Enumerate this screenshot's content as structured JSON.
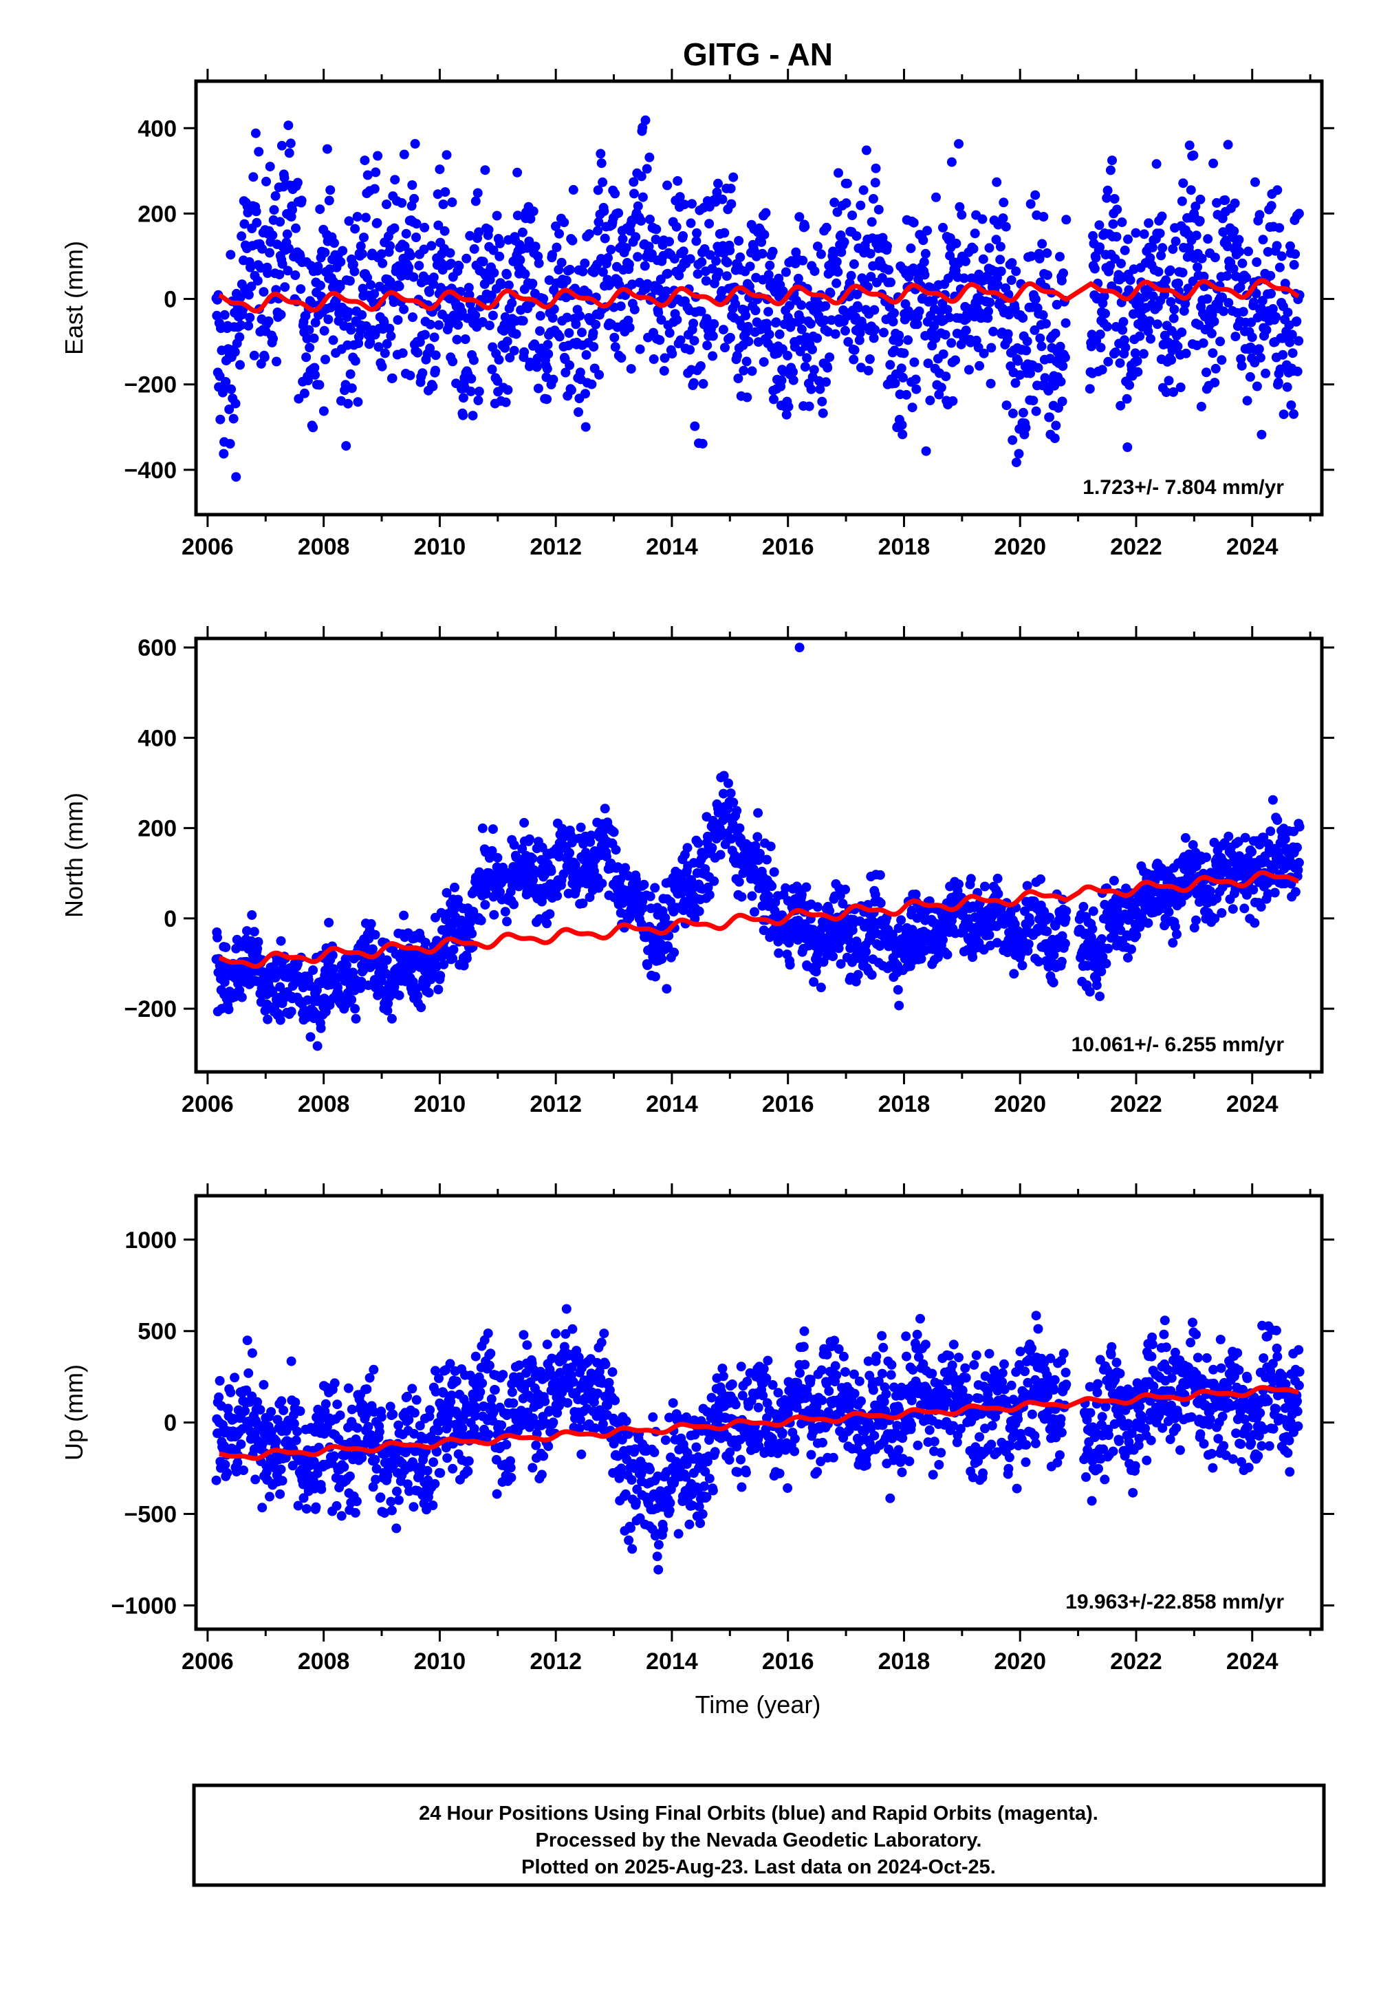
{
  "title": "GITG - AN",
  "colors": {
    "final_orbits": "#0000ff",
    "model_fit": "#ff0000",
    "frame": "#000000"
  },
  "footer": {
    "line1": "24 Hour Positions Using Final Orbits (blue) and Rapid Orbits (magenta).",
    "line2": "Processed by the Nevada Geodetic Laboratory.",
    "line3": "Plotted on 2025-Aug-23. Last data on 2024-Oct-25."
  },
  "x_axis": {
    "label": "Time (year)",
    "range": [
      2005.8,
      2025.2
    ],
    "ticks": [
      2006,
      2008,
      2010,
      2012,
      2014,
      2016,
      2018,
      2020,
      2022,
      2024
    ],
    "tick_labels": [
      "2006",
      "2008",
      "2010",
      "2012",
      "2014",
      "2016",
      "2018",
      "2020",
      "2022",
      "2024"
    ]
  },
  "chart_data": [
    {
      "type": "scatter",
      "component": "east",
      "ylabel": "East (mm)",
      "ylim": [
        -505,
        510
      ],
      "yticks": [
        -400,
        -200,
        0,
        200,
        400
      ],
      "ytick_labels": [
        "−400",
        "−200",
        "0",
        "200",
        "400"
      ],
      "rate_label": "1.723+/- 7.804 mm/yr",
      "velocity_mm_per_yr": 1.723,
      "series": [
        {
          "name": "Final Orbits (blue)",
          "kind": "scatter",
          "summary": {
            "center": [
              [
                2006.2,
                -120
              ],
              [
                2007.0,
                80
              ],
              [
                2008.0,
                40
              ],
              [
                2009.0,
                0
              ],
              [
                2010.0,
                60
              ],
              [
                2011.0,
                -80
              ],
              [
                2012.0,
                -20
              ],
              [
                2013.0,
                40
              ],
              [
                2014.0,
                90
              ],
              [
                2015.0,
                10
              ],
              [
                2016.0,
                -40
              ],
              [
                2017.0,
                20
              ],
              [
                2018.0,
                0
              ],
              [
                2019.0,
                -20
              ],
              [
                2020.0,
                -30
              ],
              [
                2021.5,
                0
              ],
              [
                2022.5,
                20
              ],
              [
                2023.5,
                0
              ],
              [
                2024.5,
                40
              ]
            ],
            "spread": 120,
            "gap": [
              2020.8,
              2021.2
            ],
            "last": 2024.82
          }
        },
        {
          "name": "Model fit (red)",
          "kind": "line",
          "seasonal_amplitude_mm": 15,
          "x": [
            2006.2,
            2024.8
          ],
          "y": [
            -10,
            25
          ]
        }
      ]
    },
    {
      "type": "scatter",
      "component": "north",
      "ylabel": "North (mm)",
      "ylim": [
        -340,
        620
      ],
      "yticks": [
        -200,
        0,
        200,
        400,
        600
      ],
      "ytick_labels": [
        "−200",
        "0",
        "200",
        "400",
        "600"
      ],
      "rate_label": "10.061+/- 6.255 mm/yr",
      "velocity_mm_per_yr": 10.061,
      "series": [
        {
          "name": "Final Orbits (blue)",
          "kind": "scatter",
          "summary": {
            "center": [
              [
                2006.2,
                -120
              ],
              [
                2007.0,
                -140
              ],
              [
                2008.0,
                -150
              ],
              [
                2009.0,
                -120
              ],
              [
                2010.0,
                -70
              ],
              [
                2011.0,
                80
              ],
              [
                2012.0,
                130
              ],
              [
                2013.0,
                110
              ],
              [
                2013.6,
                -30
              ],
              [
                2014.5,
                100
              ],
              [
                2015.0,
                200
              ],
              [
                2015.6,
                60
              ],
              [
                2016.5,
                -50
              ],
              [
                2018.0,
                -30
              ],
              [
                2019.0,
                -10
              ],
              [
                2020.0,
                0
              ],
              [
                2021.2,
                -80
              ],
              [
                2022.0,
                60
              ],
              [
                2023.0,
                60
              ],
              [
                2024.0,
                130
              ],
              [
                2024.8,
                150
              ]
            ],
            "spread": 45,
            "gap": [
              2020.8,
              2021.0
            ],
            "last": 2024.82,
            "outlier": [
              2016.2,
              600
            ]
          }
        },
        {
          "name": "Model fit (red)",
          "kind": "line",
          "seasonal_amplitude_mm": 10,
          "x": [
            2006.2,
            2024.8
          ],
          "y": [
            -100,
            95
          ]
        }
      ]
    },
    {
      "type": "scatter",
      "component": "up",
      "ylabel": "Up (mm)",
      "ylim": [
        -1130,
        1240
      ],
      "yticks": [
        -1000,
        -500,
        0,
        500,
        1000
      ],
      "ytick_labels": [
        "−1000",
        "−500",
        "0",
        "500",
        "1000"
      ],
      "rate_label": "19.963+/-22.858 mm/yr",
      "velocity_mm_per_yr": 19.963,
      "series": [
        {
          "name": "Final Orbits (blue)",
          "kind": "scatter",
          "summary": {
            "center": [
              [
                2006.2,
                -50
              ],
              [
                2007.0,
                -60
              ],
              [
                2008.0,
                -200
              ],
              [
                2009.0,
                -150
              ],
              [
                2010.0,
                -50
              ],
              [
                2011.0,
                50
              ],
              [
                2012.0,
                200
              ],
              [
                2012.9,
                100
              ],
              [
                2013.5,
                -350
              ],
              [
                2014.5,
                -250
              ],
              [
                2015.2,
                100
              ],
              [
                2016.5,
                50
              ],
              [
                2018.0,
                100
              ],
              [
                2019.0,
                50
              ],
              [
                2020.0,
                120
              ],
              [
                2021.5,
                50
              ],
              [
                2022.5,
                150
              ],
              [
                2023.5,
                150
              ],
              [
                2024.5,
                100
              ]
            ],
            "spread": 160,
            "gap": [
              2020.8,
              2021.1
            ],
            "last": 2024.82
          }
        },
        {
          "name": "Model fit (red)",
          "kind": "line",
          "seasonal_amplitude_mm": 15,
          "x": [
            2006.2,
            2024.8
          ],
          "y": [
            -190,
            185
          ]
        }
      ]
    }
  ]
}
